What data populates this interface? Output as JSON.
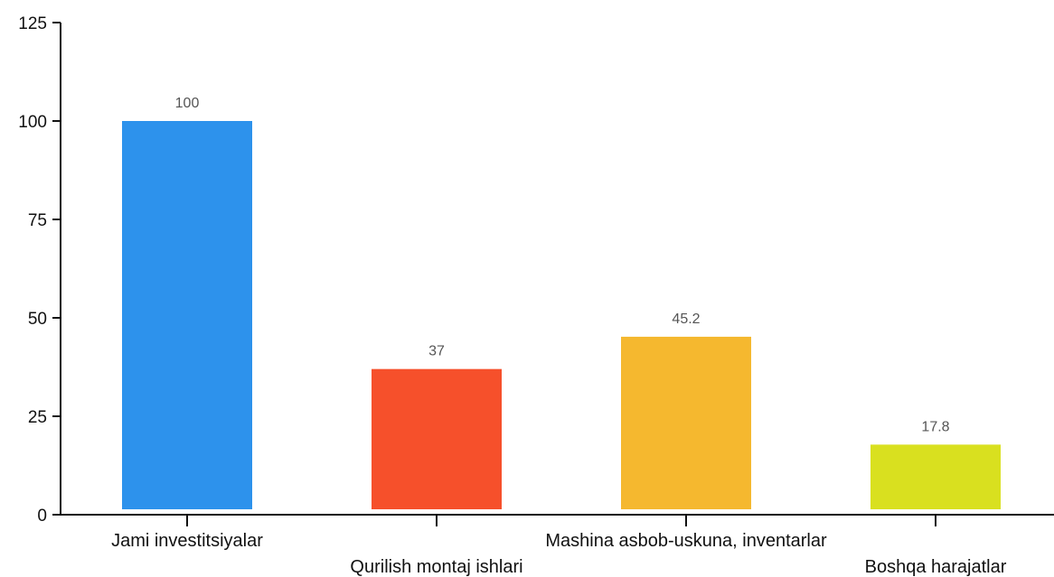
{
  "chart_data": {
    "type": "bar",
    "title": "",
    "xlabel": "",
    "ylabel": "",
    "categories": [
      "Jami investitsiyalar",
      "Qurilish montaj ishlari",
      "Mashina asbob-uskuna, inventarlar",
      "Boshqa harajatlar"
    ],
    "values": [
      100,
      37,
      45.2,
      17.8
    ],
    "value_labels": [
      "100",
      "37",
      "45.2",
      "17.8"
    ],
    "colors": [
      "#2d92ec",
      "#f6502b",
      "#f5b82f",
      "#d9e01f"
    ],
    "ylim": [
      0,
      125
    ],
    "yticks": [
      0,
      25,
      50,
      75,
      100,
      125
    ],
    "ytick_labels": [
      "0",
      "25",
      "50",
      "75",
      "100",
      "125"
    ],
    "grid": false,
    "legend": "none"
  }
}
